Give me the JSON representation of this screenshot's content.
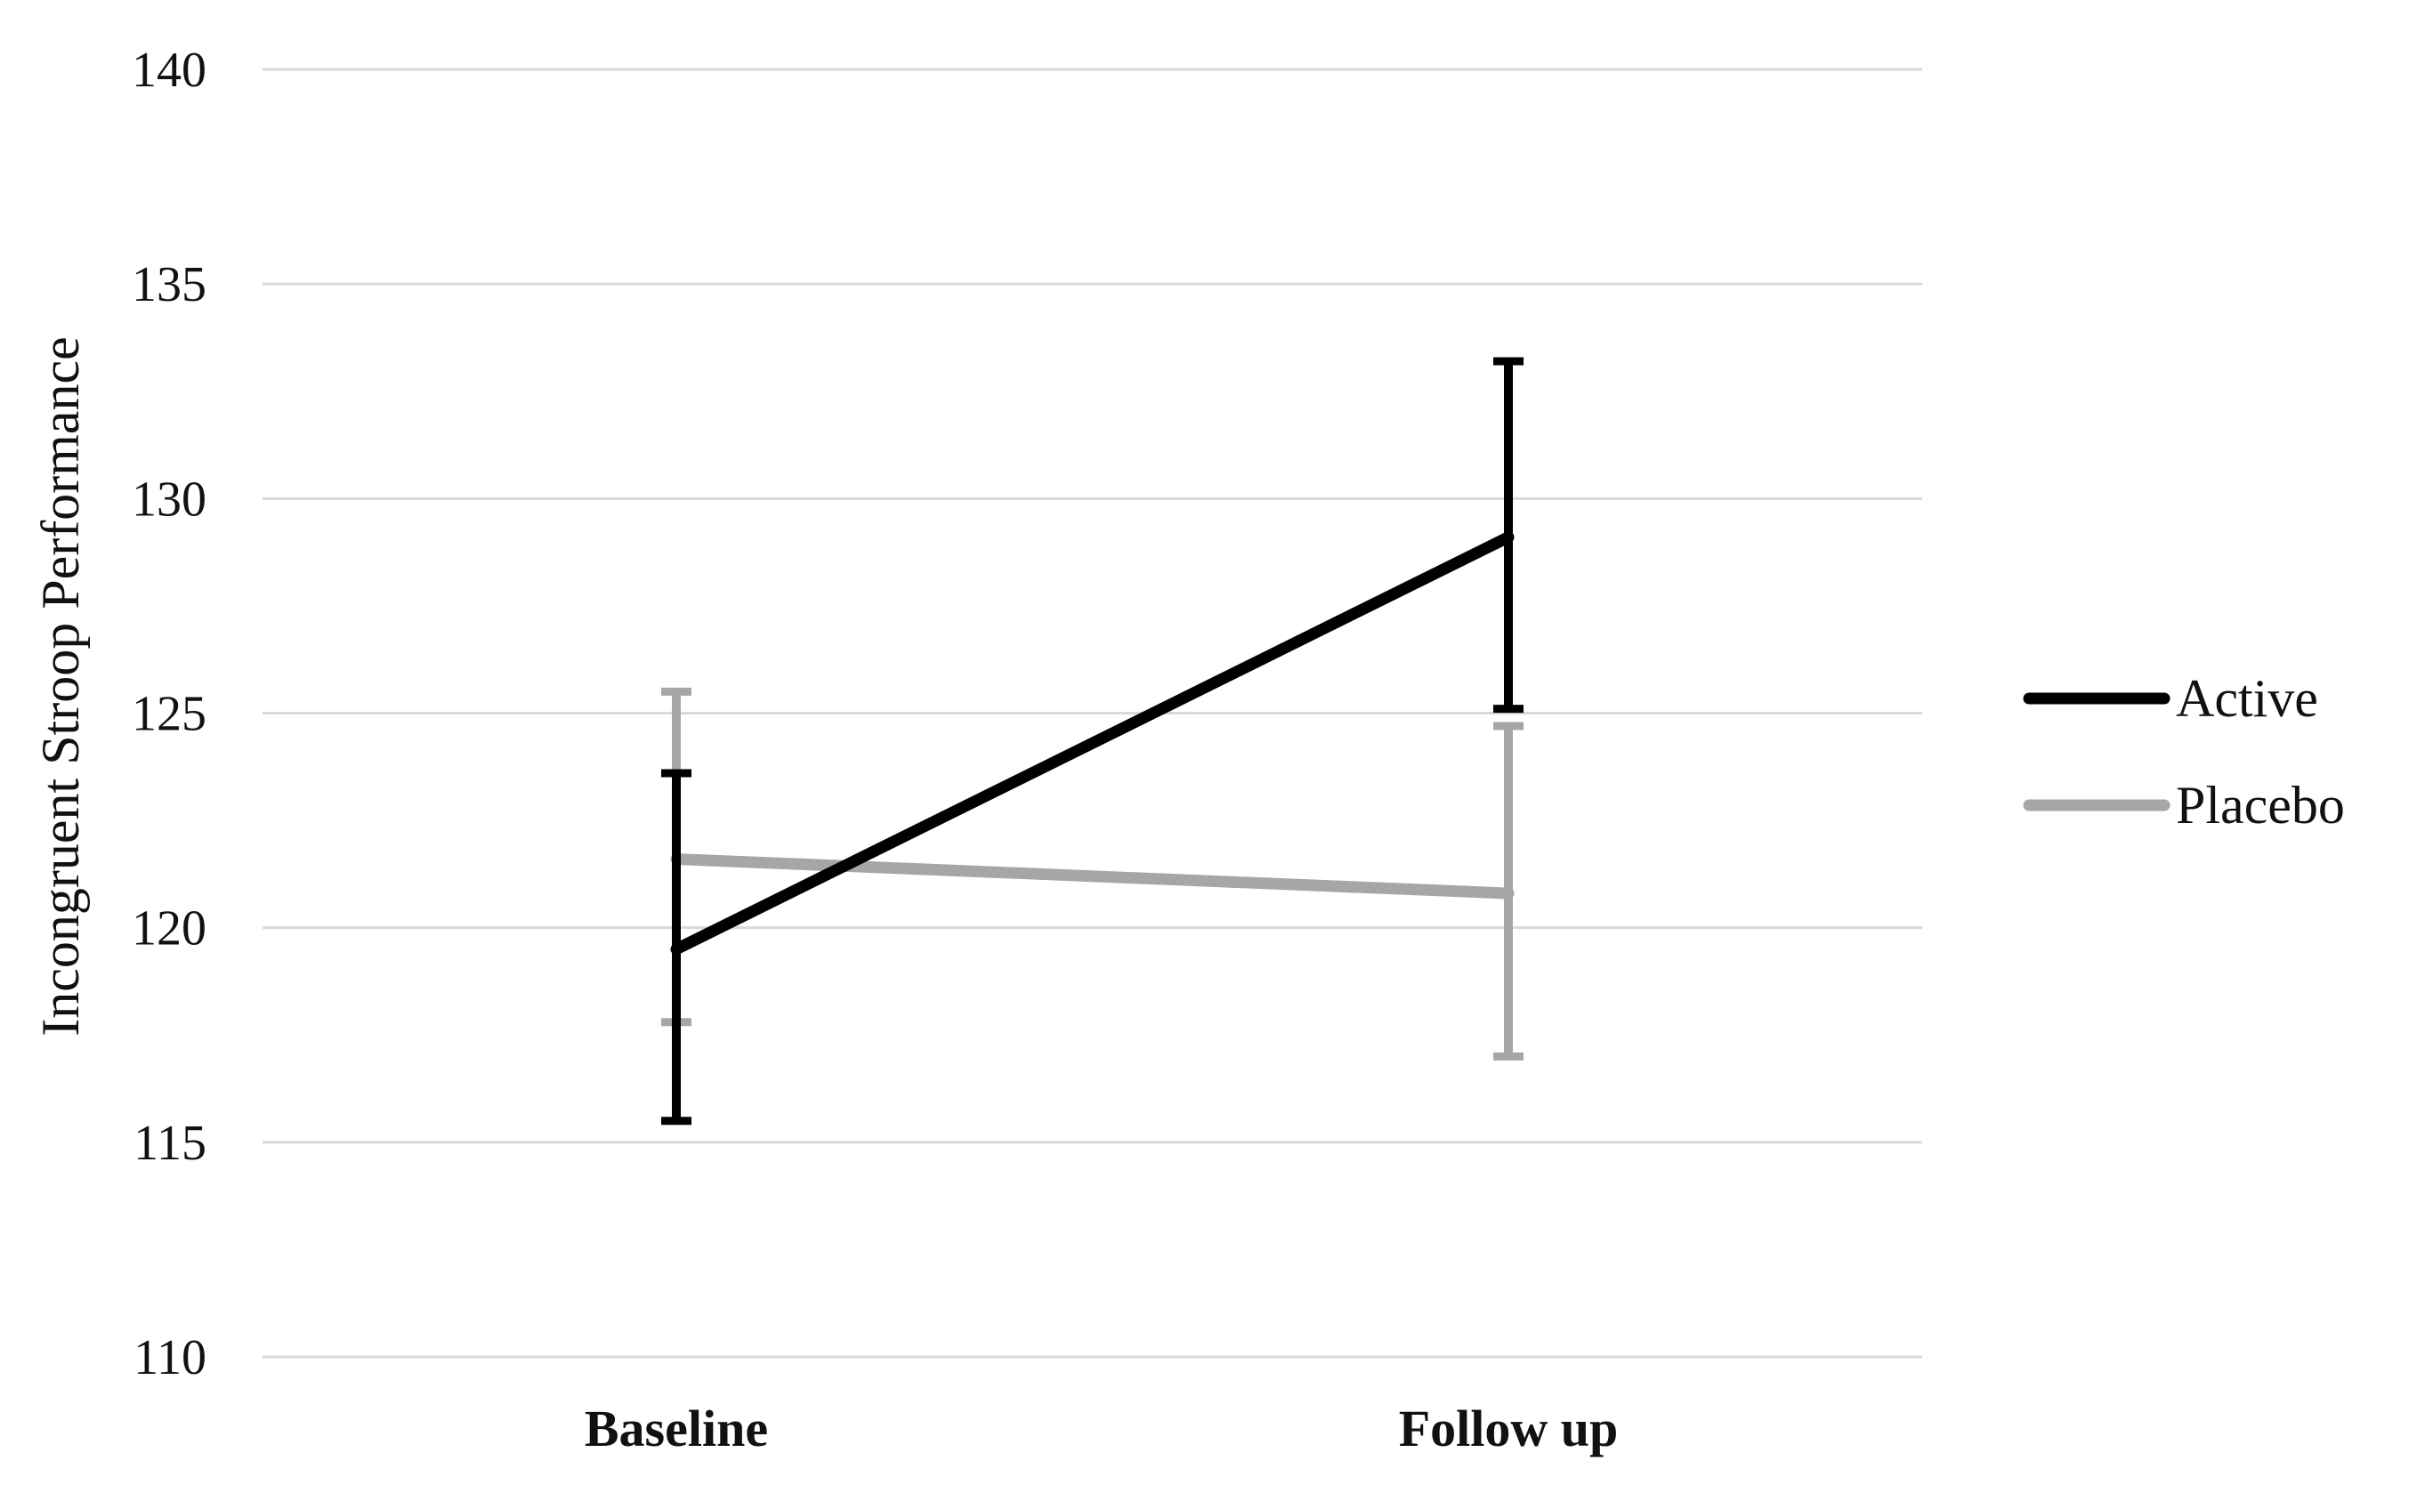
{
  "chart_data": {
    "type": "line",
    "title": "",
    "xlabel": "",
    "ylabel": "Incongruent Stroop Performance",
    "categories": [
      "Baseline",
      "Follow up"
    ],
    "ylim": [
      110,
      140
    ],
    "yticks": [
      110,
      115,
      120,
      125,
      130,
      135,
      140
    ],
    "grid": true,
    "legend_position": "right",
    "series": [
      {
        "name": "Active",
        "color": "#000000",
        "values": [
          119.5,
          129.1
        ],
        "error_low": [
          115.5,
          125.1
        ],
        "error_high": [
          123.6,
          133.2
        ]
      },
      {
        "name": "Placebo",
        "color": "#a6a6a6",
        "values": [
          121.6,
          120.8
        ],
        "error_low": [
          117.8,
          117.0
        ],
        "error_high": [
          125.5,
          124.7
        ]
      }
    ]
  }
}
